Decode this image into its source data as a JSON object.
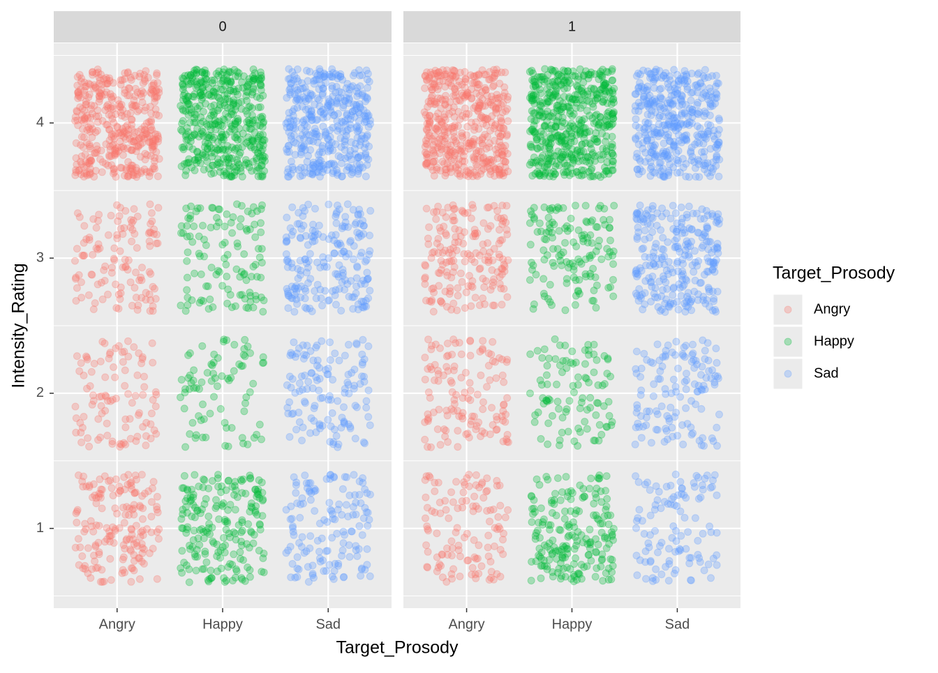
{
  "chart_data": {
    "type": "jitter",
    "x_label": "Target_Prosody",
    "y_label": "Intensity_Rating",
    "legend_title": "Target_Prosody",
    "categories": [
      "Angry",
      "Happy",
      "Sad"
    ],
    "series": [
      {
        "name": "Angry",
        "color": "#F8766D"
      },
      {
        "name": "Happy",
        "color": "#00BA38"
      },
      {
        "name": "Sad",
        "color": "#619CFF"
      }
    ],
    "facets": [
      {
        "title": "0",
        "counts": [
          [
            170,
            100,
            120,
            400
          ],
          [
            200,
            80,
            120,
            450
          ],
          [
            140,
            130,
            200,
            400
          ]
        ]
      },
      {
        "title": "1",
        "counts": [
          [
            120,
            130,
            180,
            450
          ],
          [
            200,
            100,
            140,
            500
          ],
          [
            110,
            130,
            260,
            400
          ]
        ]
      }
    ],
    "ylim": [
      0.41,
      4.59
    ],
    "yticks": [
      1,
      2,
      3,
      4
    ],
    "grid": true
  }
}
